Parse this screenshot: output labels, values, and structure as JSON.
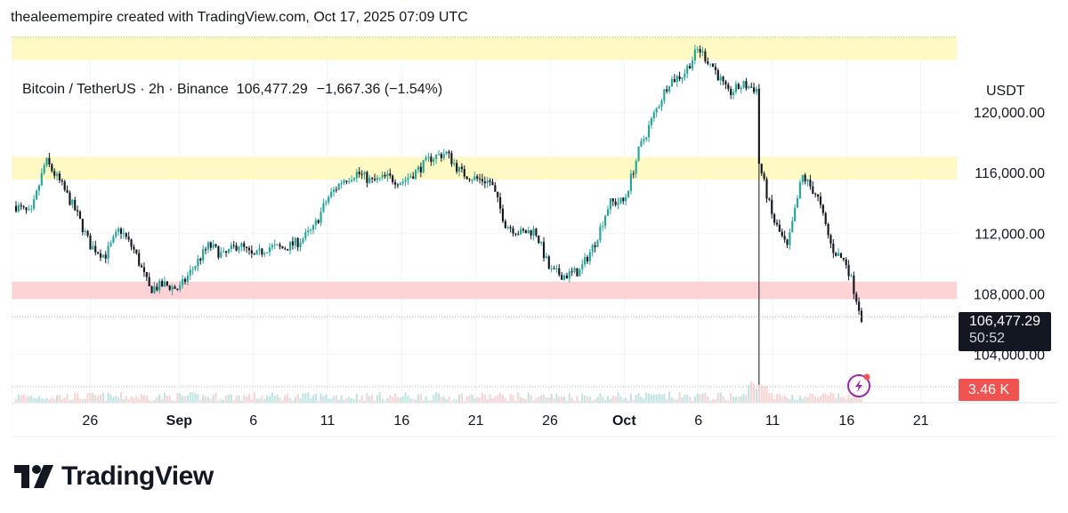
{
  "attribution": "thealeemempire created with TradingView.com, Oct 17, 2025 07:09 UTC",
  "legend": {
    "symbol": "Bitcoin / TetherUS · 2h · Binance",
    "last": "106,477.29",
    "change": "−1,667.36 (−1.54%)"
  },
  "unit": "USDT",
  "price_tag": {
    "price": "106,477.29",
    "countdown": "50:52"
  },
  "volume_tag": "3.46 K",
  "brand": "TradingView",
  "colors": {
    "up": "#26a69a",
    "down": "#131722",
    "zone_yellow": "#fff9c4",
    "zone_red": "#fdd3d6",
    "tag_red": "#f05350",
    "flash_icon": "#9c27b0"
  },
  "chart_data": {
    "type": "candlestick",
    "y_ticks": [
      "120,000.00",
      "116,000.00",
      "112,000.00",
      "108,000.00",
      "104,000.00"
    ],
    "x_ticks": [
      "26",
      "Sep",
      "6",
      "11",
      "16",
      "21",
      "26",
      "Oct",
      "6",
      "11",
      "16",
      "21"
    ],
    "ylim": [
      101800,
      125000
    ],
    "timeline": [
      "Aug 21",
      "Oct 17"
    ],
    "last_price": 106477.29,
    "zones": [
      {
        "color": "yellow",
        "range": [
          123450,
          125000
        ]
      },
      {
        "color": "yellow",
        "range": [
          115550,
          117050
        ]
      },
      {
        "color": "red",
        "range": [
          107650,
          108800
        ]
      }
    ],
    "close_path": [
      {
        "date": "Aug 21",
        "price": 113800
      },
      {
        "date": "Aug 22",
        "price": 113200
      },
      {
        "date": "Aug 23",
        "price": 116800
      },
      {
        "date": "Aug 24",
        "price": 115300
      },
      {
        "date": "Aug 25",
        "price": 113500
      },
      {
        "date": "Aug 26",
        "price": 111200
      },
      {
        "date": "Aug 27",
        "price": 110500
      },
      {
        "date": "Aug 28",
        "price": 112300
      },
      {
        "date": "Aug 29",
        "price": 110800
      },
      {
        "date": "Aug 30",
        "price": 108300
      },
      {
        "date": "Aug 31",
        "price": 108600
      },
      {
        "date": "Sep 1",
        "price": 108300
      },
      {
        "date": "Sep 2",
        "price": 109800
      },
      {
        "date": "Sep 3",
        "price": 111200
      },
      {
        "date": "Sep 4",
        "price": 110500
      },
      {
        "date": "Sep 5",
        "price": 111300
      },
      {
        "date": "Sep 6",
        "price": 110400
      },
      {
        "date": "Sep 7",
        "price": 111100
      },
      {
        "date": "Sep 8",
        "price": 111000
      },
      {
        "date": "Sep 9",
        "price": 111400
      },
      {
        "date": "Sep 10",
        "price": 112200
      },
      {
        "date": "Sep 11",
        "price": 114300
      },
      {
        "date": "Sep 12",
        "price": 115500
      },
      {
        "date": "Sep 13",
        "price": 116000
      },
      {
        "date": "Sep 14",
        "price": 115400
      },
      {
        "date": "Sep 15",
        "price": 115700
      },
      {
        "date": "Sep 16",
        "price": 115400
      },
      {
        "date": "Sep 17",
        "price": 116100
      },
      {
        "date": "Sep 18",
        "price": 117000
      },
      {
        "date": "Sep 19",
        "price": 117300
      },
      {
        "date": "Sep 20",
        "price": 116000
      },
      {
        "date": "Sep 21",
        "price": 115600
      },
      {
        "date": "Sep 22",
        "price": 115400
      },
      {
        "date": "Sep 23",
        "price": 112600
      },
      {
        "date": "Sep 24",
        "price": 112000
      },
      {
        "date": "Sep 25",
        "price": 112200
      },
      {
        "date": "Sep 26",
        "price": 109500
      },
      {
        "date": "Sep 27",
        "price": 109200
      },
      {
        "date": "Sep 28",
        "price": 109500
      },
      {
        "date": "Sep 29",
        "price": 111300
      },
      {
        "date": "Sep 30",
        "price": 114000
      },
      {
        "date": "Oct 1",
        "price": 114100
      },
      {
        "date": "Oct 2",
        "price": 117500
      },
      {
        "date": "Oct 3",
        "price": 119800
      },
      {
        "date": "Oct 4",
        "price": 122000
      },
      {
        "date": "Oct 5",
        "price": 122500
      },
      {
        "date": "Oct 6",
        "price": 124200
      },
      {
        "date": "Oct 7",
        "price": 123000
      },
      {
        "date": "Oct 8",
        "price": 121200
      },
      {
        "date": "Oct 9",
        "price": 121800
      },
      {
        "date": "Oct 10",
        "price": 121500
      },
      {
        "date": "Oct 10",
        "price": 117000
      },
      {
        "date": "Oct 11",
        "price": 113000
      },
      {
        "date": "Oct 12",
        "price": 111000
      },
      {
        "date": "Oct 13",
        "price": 115800
      },
      {
        "date": "Oct 14",
        "price": 114500
      },
      {
        "date": "Oct 15",
        "price": 111000
      },
      {
        "date": "Oct 16",
        "price": 110000
      },
      {
        "date": "Oct 17",
        "price": 106477
      }
    ],
    "flash_crash_low": {
      "date": "Oct 10",
      "price": 102000
    }
  }
}
